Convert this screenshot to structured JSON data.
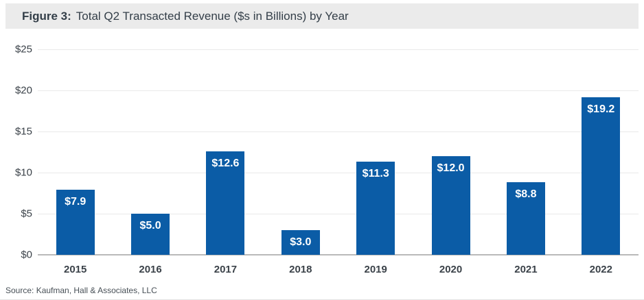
{
  "figure": {
    "label": "Figure 3:",
    "title": "Total Q2 Transacted Revenue ($s in Billions) by Year"
  },
  "source": "Source: Kaufman, Hall & Associates, LLC",
  "chart_data": {
    "type": "bar",
    "title": "Total Q2 Transacted Revenue ($s in Billions) by Year",
    "categories": [
      "2015",
      "2016",
      "2017",
      "2018",
      "2019",
      "2020",
      "2021",
      "2022"
    ],
    "values": [
      7.9,
      5.0,
      12.6,
      3.0,
      11.3,
      12.0,
      8.8,
      19.2
    ],
    "bar_labels": [
      "$7.9",
      "$5.0",
      "$12.6",
      "$3.0",
      "$11.3",
      "$12.0",
      "$8.8",
      "$19.2"
    ],
    "xlabel": "",
    "ylabel": "",
    "ylim": [
      0,
      25
    ],
    "yticks": [
      0,
      5,
      10,
      15,
      20,
      25
    ],
    "ytick_labels": [
      "$0",
      "$5",
      "$10",
      "$15",
      "$20",
      "$25"
    ],
    "grid": true,
    "legend": "none",
    "bar_color": "#0b5ca6",
    "bar_label_color": "#ffffff"
  },
  "colors": {
    "title_band_bg": "#ebebeb",
    "title_text": "#333e48",
    "axis_text": "#3b4249",
    "gridline": "#e9e9e9",
    "baseline": "#b9b9b9"
  }
}
